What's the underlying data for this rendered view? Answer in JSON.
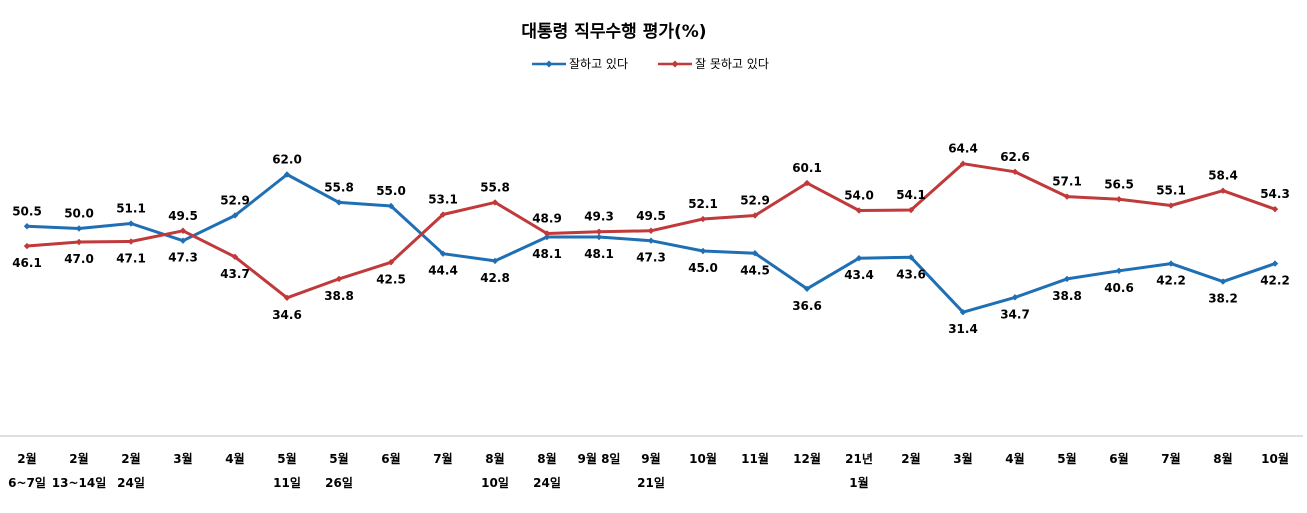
{
  "chart_data": {
    "type": "line",
    "title": "대통령 직무수행 평가(%)",
    "legend_position": "top-center",
    "grid": false,
    "categories": [
      [
        "2월",
        "6~7일"
      ],
      [
        "2월",
        "13~14일"
      ],
      [
        "2월",
        "24일"
      ],
      [
        "3월",
        ""
      ],
      [
        "4월",
        ""
      ],
      [
        "5월",
        "11일"
      ],
      [
        "5월",
        "26일"
      ],
      [
        "6월",
        ""
      ],
      [
        "7월",
        ""
      ],
      [
        "8월",
        "10일"
      ],
      [
        "8월",
        "24일"
      ],
      [
        "9월 8일",
        ""
      ],
      [
        "9월",
        "21일"
      ],
      [
        "10월",
        ""
      ],
      [
        "11월",
        ""
      ],
      [
        "12월",
        ""
      ],
      [
        "21년",
        "1월"
      ],
      [
        "2월",
        ""
      ],
      [
        "3월",
        ""
      ],
      [
        "4월",
        ""
      ],
      [
        "5월",
        ""
      ],
      [
        "6월",
        ""
      ],
      [
        "7월",
        ""
      ],
      [
        "8월",
        ""
      ],
      [
        "10월",
        ""
      ]
    ],
    "ylim": [
      0,
      100
    ],
    "series": [
      {
        "name": "잘하고 있다",
        "color": "#1f6fb5",
        "values": [
          50.5,
          50.0,
          51.1,
          47.3,
          52.9,
          62.0,
          55.8,
          55.0,
          44.4,
          42.8,
          48.1,
          48.1,
          47.3,
          45.0,
          44.5,
          36.6,
          43.4,
          43.6,
          31.4,
          34.7,
          38.8,
          40.6,
          42.2,
          38.2,
          42.2
        ],
        "labels": [
          "50.5",
          "50.0",
          "51.1",
          "47.3",
          "52.9",
          "62.0",
          "55.8",
          "55.0",
          "44.4",
          "42.8",
          "48.1",
          "48.1",
          "47.3",
          "45.0",
          "44.5",
          "36.6",
          "43.4",
          "43.6",
          "31.4",
          "34.7",
          "38.8",
          "40.6",
          "42.2",
          "38.2",
          "42.2"
        ]
      },
      {
        "name": "잘 못하고 있다",
        "color": "#c0393b",
        "values": [
          46.1,
          47.0,
          47.1,
          49.5,
          43.7,
          34.6,
          38.8,
          42.5,
          53.1,
          55.8,
          48.9,
          49.3,
          49.5,
          52.1,
          52.9,
          60.1,
          54.0,
          54.1,
          64.4,
          62.6,
          57.1,
          56.5,
          55.1,
          58.4,
          54.3
        ],
        "labels": [
          "46.1",
          "47.0",
          "47.1",
          "49.5",
          "43.7",
          "34.6",
          "38.8",
          "42.5",
          "53.1",
          "55.8",
          "48.9",
          "49.3",
          "49.5",
          "52.1",
          "52.9",
          "60.1",
          "54.0",
          "54.1",
          "64.4",
          "62.6",
          "57.1",
          "56.5",
          "55.1",
          "58.4",
          "54.3"
        ]
      }
    ]
  }
}
